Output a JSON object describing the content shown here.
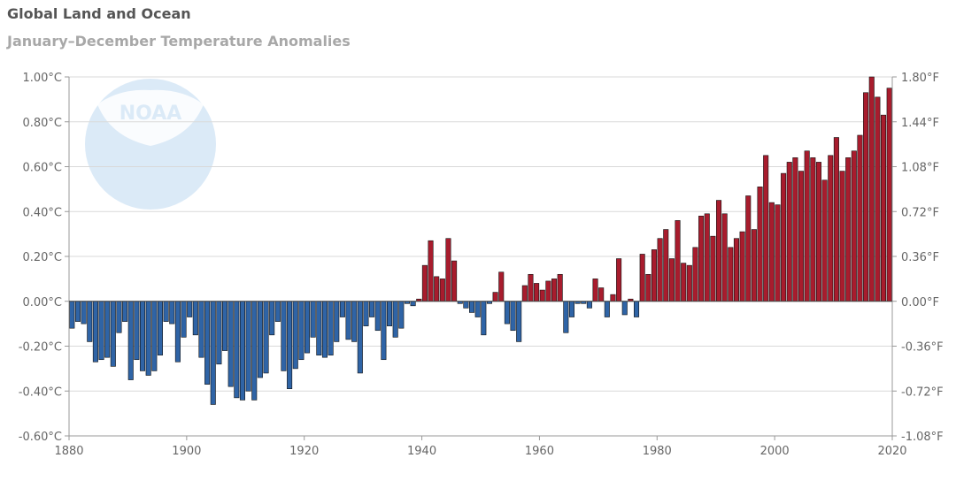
{
  "chart_data": {
    "type": "bar",
    "title": "Global Land and Ocean",
    "subtitle": "January–December Temperature Anomalies",
    "x_start_year": 1880,
    "values": [
      -0.12,
      -0.09,
      -0.1,
      -0.18,
      -0.27,
      -0.26,
      -0.25,
      -0.29,
      -0.14,
      -0.09,
      -0.35,
      -0.26,
      -0.31,
      -0.33,
      -0.31,
      -0.24,
      -0.09,
      -0.1,
      -0.27,
      -0.16,
      -0.07,
      -0.15,
      -0.25,
      -0.37,
      -0.46,
      -0.28,
      -0.22,
      -0.38,
      -0.43,
      -0.44,
      -0.4,
      -0.44,
      -0.34,
      -0.32,
      -0.15,
      -0.09,
      -0.31,
      -0.39,
      -0.3,
      -0.26,
      -0.23,
      -0.16,
      -0.24,
      -0.25,
      -0.24,
      -0.18,
      -0.07,
      -0.17,
      -0.18,
      -0.32,
      -0.11,
      -0.07,
      -0.13,
      -0.26,
      -0.11,
      -0.16,
      -0.12,
      -0.01,
      -0.02,
      0.01,
      0.16,
      0.27,
      0.11,
      0.1,
      0.28,
      0.18,
      -0.01,
      -0.03,
      -0.05,
      -0.07,
      -0.15,
      -0.01,
      0.04,
      0.13,
      -0.1,
      -0.13,
      -0.18,
      0.07,
      0.12,
      0.08,
      0.05,
      0.09,
      0.1,
      0.12,
      -0.14,
      -0.07,
      -0.01,
      -0.01,
      -0.03,
      0.1,
      0.06,
      -0.07,
      0.03,
      0.19,
      -0.06,
      0.01,
      -0.07,
      0.21,
      0.12,
      0.23,
      0.28,
      0.32,
      0.19,
      0.36,
      0.17,
      0.16,
      0.24,
      0.38,
      0.39,
      0.29,
      0.45,
      0.39,
      0.24,
      0.28,
      0.31,
      0.47,
      0.32,
      0.51,
      0.65,
      0.44,
      0.43,
      0.57,
      0.62,
      0.64,
      0.58,
      0.67,
      0.64,
      0.62,
      0.54,
      0.65,
      0.73,
      0.58,
      0.64,
      0.67,
      0.74,
      0.93,
      1.0,
      0.91,
      0.83,
      0.95
    ],
    "x_ticks": [
      1880,
      1900,
      1920,
      1940,
      1960,
      1980,
      2000,
      2020
    ],
    "ylim": [
      -0.6,
      1.0
    ],
    "y_ticks": [
      1.0,
      0.8,
      0.6,
      0.4,
      0.2,
      0.0,
      -0.2,
      -0.4,
      -0.6
    ],
    "y_tick_labels_left": [
      "1.00°C",
      "0.80°C",
      "0.60°C",
      "0.40°C",
      "0.20°C",
      "0.00°C",
      "-0.20°C",
      "-0.40°C",
      "-0.60°C"
    ],
    "y_tick_labels_right": [
      "1.80°F",
      "1.44°F",
      "1.08°F",
      "0.72°F",
      "0.36°F",
      "0.00°F",
      "-0.36°F",
      "-0.72°F",
      "-1.08°F"
    ],
    "colors": {
      "positive": "#a81c2d",
      "negative": "#2f64a6",
      "grid": "#d9d9d9",
      "axis": "#999999",
      "bar_outline": "#111111",
      "logo": "#dbeaf7"
    },
    "watermark": "NOAA",
    "grid": true
  }
}
